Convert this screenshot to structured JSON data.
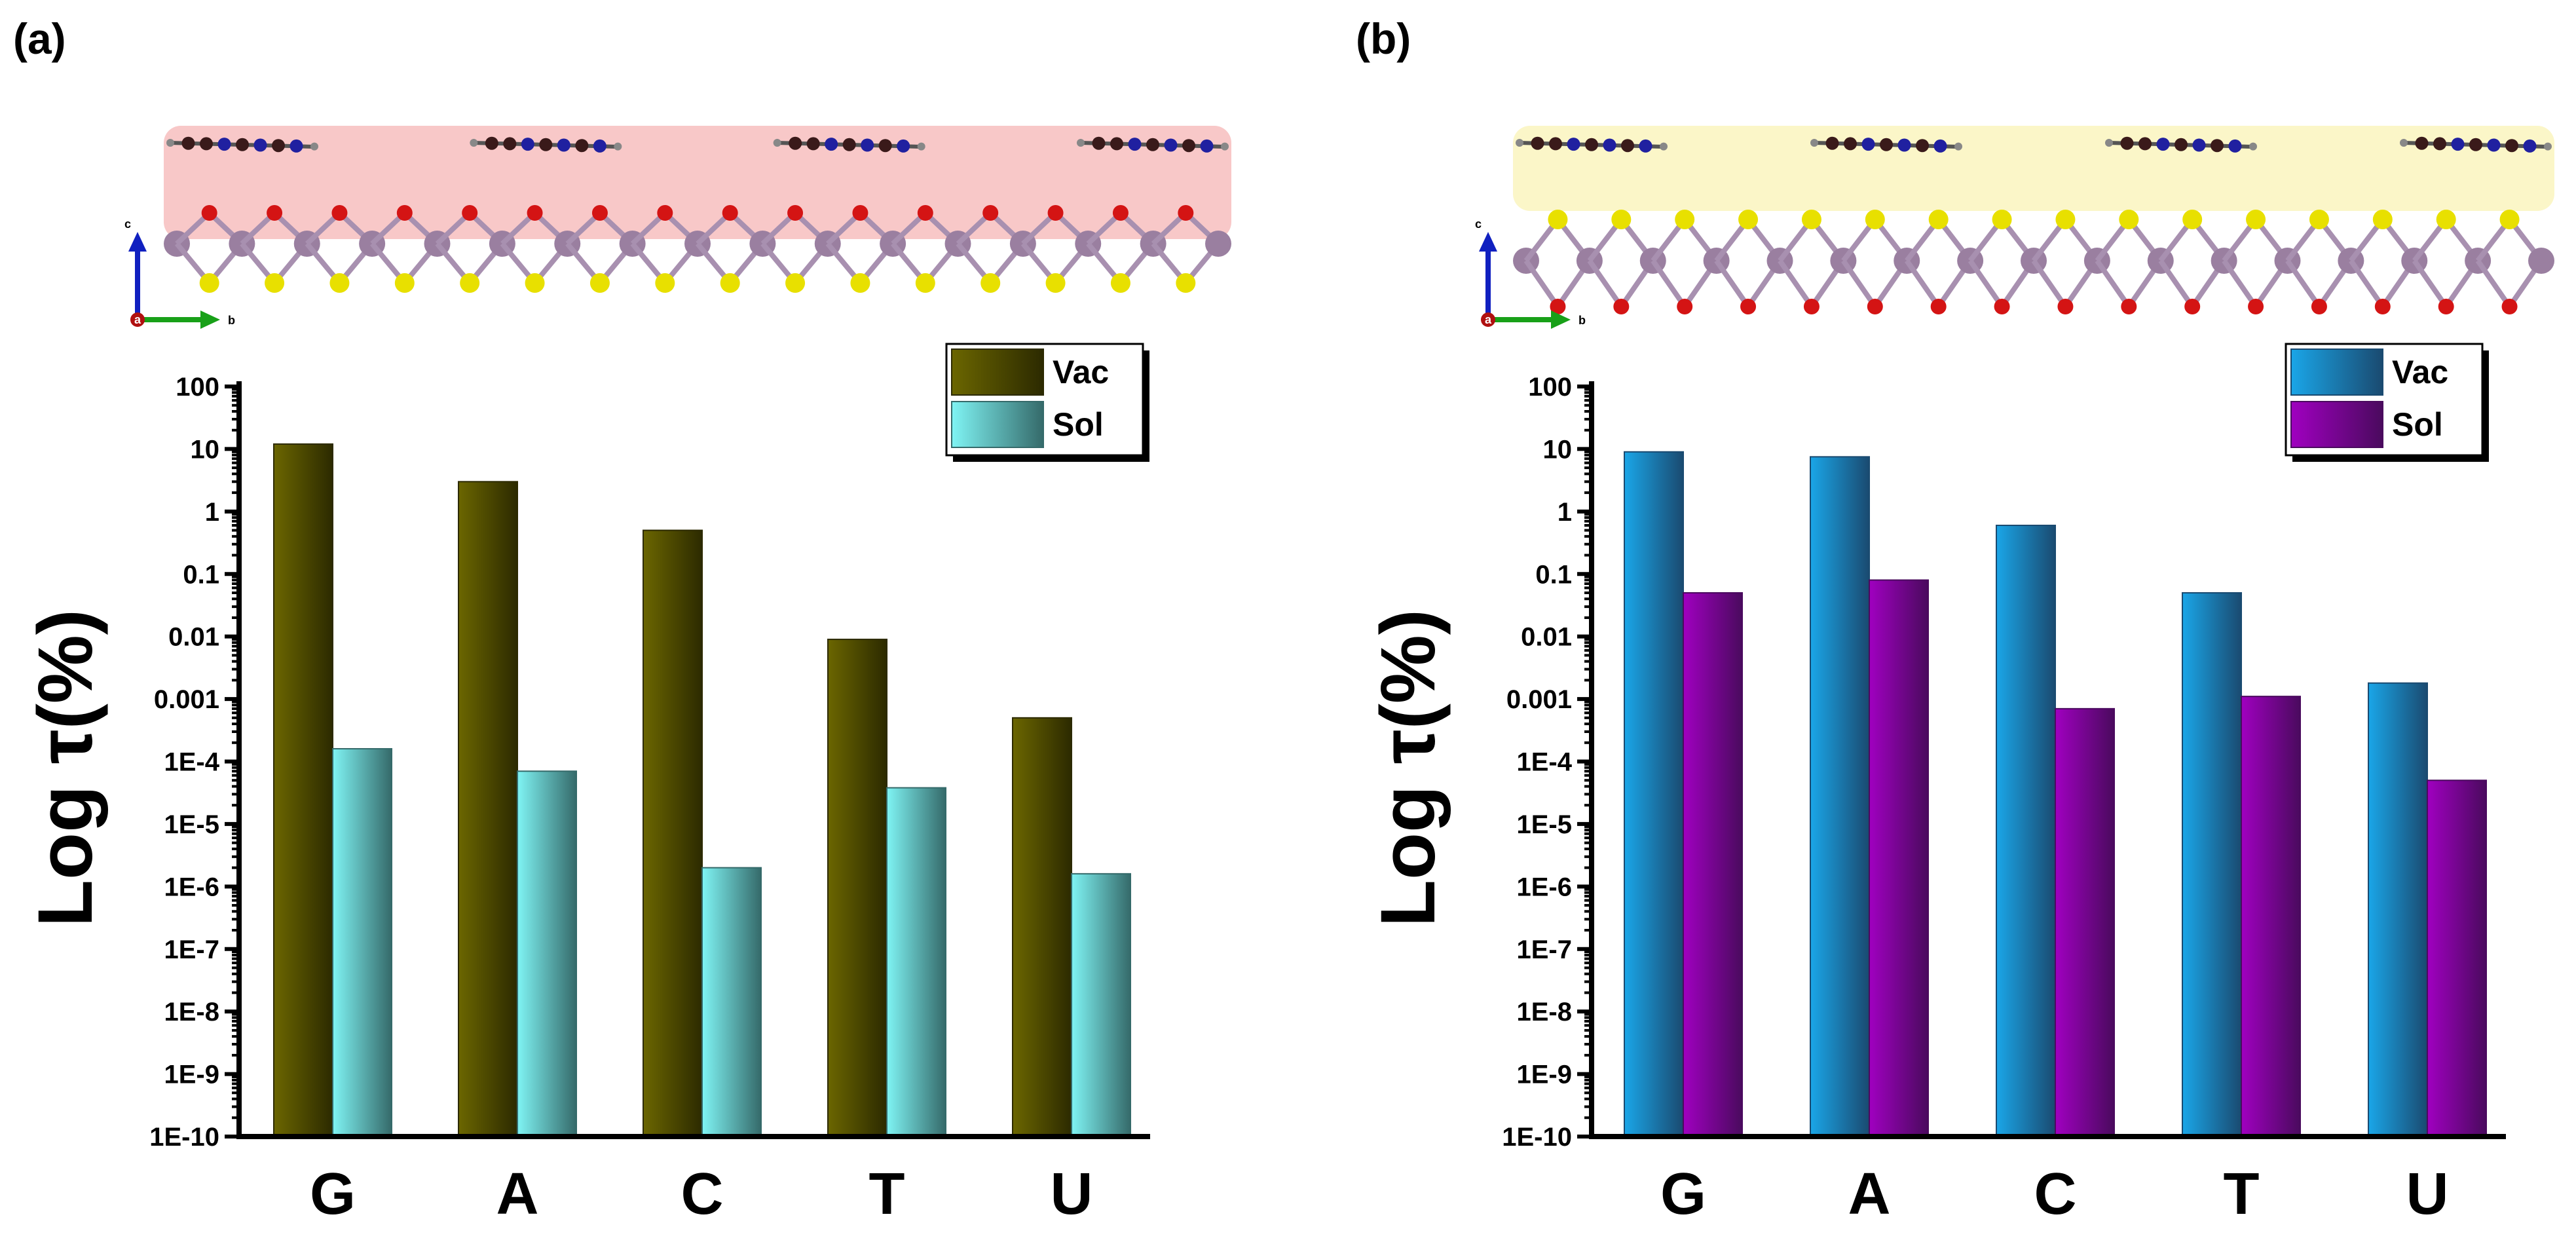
{
  "chart_data": [
    {
      "type": "bar",
      "panel_label": "(a)",
      "ylabel": "Log τ(%)",
      "yscale": "log",
      "ylim": [
        1e-10,
        100
      ],
      "yticks": [
        "1E-10",
        "1E-9",
        "1E-8",
        "1E-7",
        "1E-6",
        "1E-5",
        "1E-4",
        "0.001",
        "0.01",
        "0.1",
        "1",
        "10",
        "100"
      ],
      "categories": [
        "G",
        "A",
        "C",
        "T",
        "U"
      ],
      "series": [
        {
          "name": "Vac",
          "values": [
            12,
            3.0,
            0.5,
            0.009,
            0.0005
          ]
        },
        {
          "name": "Sol",
          "values": [
            0.00016,
            7e-05,
            2e-06,
            3.8e-05,
            1.6e-06
          ]
        }
      ],
      "legend_position": "top-right",
      "colors": {
        "Vac_light": "#6b6600",
        "Vac_dark": "#2c2a00",
        "Sol_light": "#7ff4f4",
        "Sol_dark": "#356a6a",
        "band": "#f8c8c8",
        "top_atom": "#d41414",
        "bottom_atom": "#e8e000"
      },
      "inset_axes": {
        "vertical": "c",
        "horizontal": "b",
        "origin": "a"
      }
    },
    {
      "type": "bar",
      "panel_label": "(b)",
      "ylabel": "Log τ(%)",
      "yscale": "log",
      "ylim": [
        1e-10,
        100
      ],
      "yticks": [
        "1E-10",
        "1E-9",
        "1E-8",
        "1E-7",
        "1E-6",
        "1E-5",
        "1E-4",
        "0.001",
        "0.01",
        "0.1",
        "1",
        "10",
        "100"
      ],
      "categories": [
        "G",
        "A",
        "C",
        "T",
        "U"
      ],
      "series": [
        {
          "name": "Vac",
          "values": [
            9,
            7.5,
            0.6,
            0.05,
            0.0018
          ]
        },
        {
          "name": "Sol",
          "values": [
            0.05,
            0.08,
            0.0007,
            0.0011,
            5e-05
          ]
        }
      ],
      "legend_position": "top-right",
      "colors": {
        "Vac_light": "#1aa6e8",
        "Vac_dark": "#1a4a70",
        "Sol_light": "#a000c0",
        "Sol_dark": "#4a0a5e",
        "band": "#fbf6c8",
        "top_atom": "#e8e000",
        "bottom_atom": "#d41414"
      },
      "inset_axes": {
        "vertical": "c",
        "horizontal": "b",
        "origin": "a"
      }
    }
  ]
}
